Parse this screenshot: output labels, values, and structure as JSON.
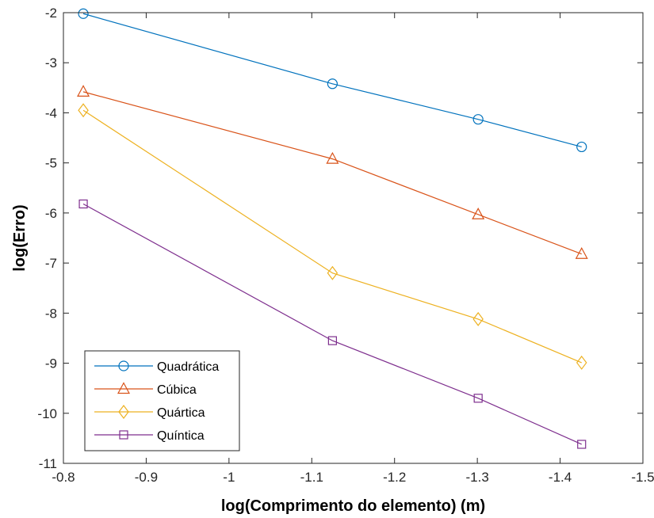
{
  "chart_data": {
    "type": "line",
    "title": "",
    "xlabel": "log(Comprimento do elemento) (m)",
    "ylabel": "log(Erro)",
    "xlim": [
      -0.8,
      -1.5
    ],
    "ylim": [
      -11,
      -2
    ],
    "x_reversed": true,
    "xticks": [
      "-0.8",
      "-0.9",
      "-1",
      "-1.1",
      "-1.2",
      "-1.3",
      "-1.4",
      "-1.5"
    ],
    "yticks": [
      "-2",
      "-3",
      "-4",
      "-5",
      "-6",
      "-7",
      "-8",
      "-9",
      "-10",
      "-11"
    ],
    "grid": false,
    "legend_position": "bottom-left",
    "x": [
      -0.824,
      -1.125,
      -1.301,
      -1.426
    ],
    "series": [
      {
        "name": "Quadrática",
        "values": [
          -2.02,
          -3.42,
          -4.13,
          -4.68
        ],
        "marker": "circle",
        "color": "#0072BD"
      },
      {
        "name": "Cúbica",
        "values": [
          -3.58,
          -4.92,
          -6.03,
          -6.82
        ],
        "marker": "triangle",
        "color": "#D95319"
      },
      {
        "name": "Quártica",
        "values": [
          -3.95,
          -7.2,
          -8.12,
          -8.99
        ],
        "marker": "diamond",
        "color": "#EDB120"
      },
      {
        "name": "Quíntica",
        "values": [
          -5.82,
          -8.55,
          -9.7,
          -10.62
        ],
        "marker": "square",
        "color": "#7E2F8E"
      }
    ]
  }
}
